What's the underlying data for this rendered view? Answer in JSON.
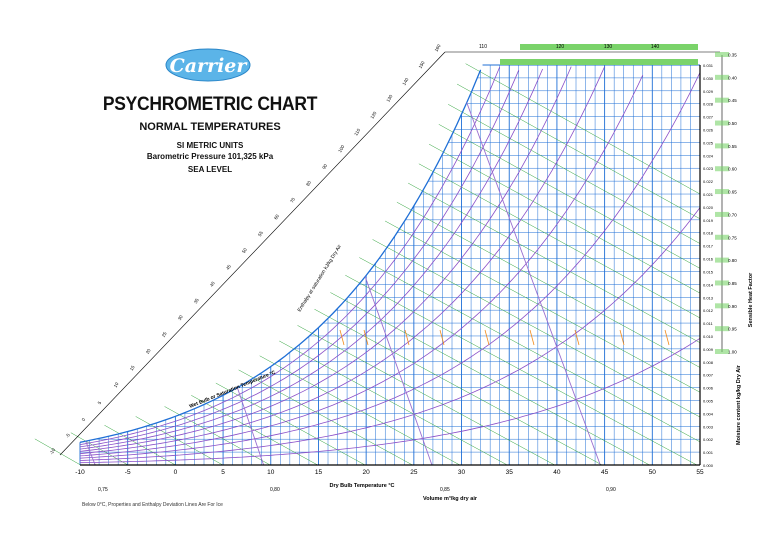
{
  "header": {
    "brand": "Carrier",
    "title": "PSYCHROMETRIC CHART",
    "subtitle": "NORMAL TEMPERATURES",
    "units": "SI METRIC UNITS",
    "barometric": "Barometric Pressure 101,325 kPa",
    "elevation": "SEA LEVEL"
  },
  "footnote": "Below 0°C, Properties and Enthalpy Deviation Lines Are For Ice",
  "colors": {
    "grid_blue": "#1f6fd6",
    "enthalpy_green": "#2fa33a",
    "rh_purple": "#8a4fc8",
    "volume_purple": "#9a6fd0",
    "annotation_orange": "#f08a1c",
    "axis_black": "#000000"
  },
  "chart_data": {
    "type": "psychrometric",
    "xlabel": "Dry Bulb Temperature °C",
    "ylabel": "Moisture content kg/kg Dry Air",
    "volume_label": "Volume m³/kg dry air",
    "wetbulb_label": "Wet Bulb or Saturation Temperature °C",
    "enthalpy_label": "Enthalpy at saturation kJ/kg Dry Air",
    "shf_label": "Sensible Heat Factor",
    "xlim": [
      -10,
      55
    ],
    "ylim": [
      0,
      0.031
    ],
    "x_ticks": [
      -10,
      -5,
      0,
      5,
      10,
      15,
      20,
      25,
      30,
      35,
      40,
      45,
      50,
      55
    ],
    "x_tick_labels": [
      "-10",
      "-5",
      "0",
      "5",
      "10",
      "15",
      "20",
      "25",
      "30",
      "35",
      "40",
      "45",
      "50",
      "55"
    ],
    "y_ticks": [
      0.0,
      0.001,
      0.002,
      0.003,
      0.004,
      0.005,
      0.006,
      0.007,
      0.008,
      0.009,
      0.01,
      0.011,
      0.012,
      0.013,
      0.014,
      0.015,
      0.016,
      0.017,
      0.018,
      0.019,
      0.02,
      0.021,
      0.022,
      0.023,
      0.024,
      0.025,
      0.026,
      0.027,
      0.028,
      0.029,
      0.03,
      0.031
    ],
    "y_tick_labels": [
      "0.000",
      "0.001",
      "0.002",
      "0.003",
      "0.004",
      "0.005",
      "0.006",
      "0.007",
      "0.008",
      "0.009",
      "0.010",
      "0.011",
      "0.012",
      "0.013",
      "0.014",
      "0.015",
      "0.016",
      "0.017",
      "0.018",
      "0.019",
      "0.020",
      "0.021",
      "0.022",
      "0.023",
      "0.024",
      "0.025",
      "0.026",
      "0.027",
      "0.028",
      "0.029",
      "0.030",
      "0.031"
    ],
    "relative_humidity_lines": [
      0.1,
      0.2,
      0.3,
      0.4,
      0.5,
      0.6,
      0.7,
      0.8,
      0.9
    ],
    "enthalpy_lines": [
      -10,
      0,
      10,
      20,
      30,
      40,
      50,
      60,
      70,
      80,
      90,
      100,
      110,
      120,
      130,
      140,
      150,
      160
    ],
    "enthalpy_labels": [
      "-10",
      "-5",
      "0",
      "5",
      "10",
      "15",
      "20",
      "25",
      "30",
      "35",
      "40",
      "45",
      "50",
      "55",
      "60",
      "70",
      "80",
      "90",
      "100",
      "110",
      "120",
      "130",
      "140",
      "150",
      "160"
    ],
    "top_scale_labels": [
      "110",
      "120",
      "130",
      "140"
    ],
    "volume_lines": [
      0.75,
      0.8,
      0.85,
      0.9
    ],
    "volume_labels": [
      "0,75",
      "0,80",
      "0,85",
      "0,90"
    ],
    "shf_scale": [
      "1.00",
      "0.95",
      "0.90",
      "0.85",
      "0.80",
      "0.75",
      "0.70",
      "0.65",
      "0.60",
      "0.55",
      "0.50",
      "0.45",
      "0.40",
      "0.35"
    ]
  }
}
